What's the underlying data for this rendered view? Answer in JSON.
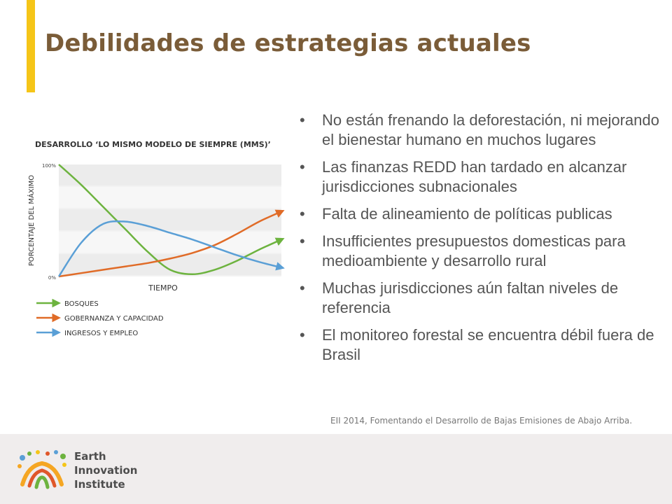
{
  "slide": {
    "title": "Debilidades de estrategias actuales",
    "accent_color": "#f5c518",
    "title_color": "#7a5c38"
  },
  "bullets": [
    "No están frenando la deforestación, ni mejorando el bienestar humano en muchos lugares",
    "Las finanzas REDD han tardado en alcanzar jurisdicciones subnacionales",
    "Falta de alineamiento de políticas publicas",
    "Insufficientes presupuestos domesticas para medioambiente y desarrollo rural",
    "Muchas jurisdicciones aún faltan niveles de referencia",
    "El monitoreo forestal se encuentra débil fuera de Brasil"
  ],
  "source": "EII 2014, Fomentando el Desarrollo de Bajas Emisiones de Abajo Arriba.",
  "footer": {
    "org_line1": "Earth",
    "org_line2": "Innovation",
    "org_line3": "Institute",
    "background": "#f0eded"
  },
  "chart_data": {
    "type": "line",
    "title": "DESARROLLO ‘LO MISMO MODELO DE SIEMPRE (MMS)’",
    "xlabel": "TIEMPO",
    "ylabel": "PORCENTAJE DEL MÁXIMO",
    "ytick_labels": [
      "100%",
      "0%"
    ],
    "ylim": [
      0,
      100
    ],
    "xlim": [
      0,
      100
    ],
    "grid": true,
    "legend_position": "bottom-left",
    "series": [
      {
        "name": "BOSQUES",
        "color": "#6db33f",
        "x": [
          0,
          10,
          20,
          30,
          40,
          50,
          60,
          70,
          80,
          90,
          100
        ],
        "y": [
          100,
          82,
          62,
          42,
          22,
          6,
          2,
          6,
          14,
          24,
          33
        ]
      },
      {
        "name": "GOBERNANZA Y CAPACIDAD",
        "color": "#e06b27",
        "x": [
          0,
          10,
          20,
          30,
          40,
          50,
          60,
          70,
          80,
          90,
          100
        ],
        "y": [
          0,
          3,
          6,
          9,
          12,
          16,
          21,
          28,
          38,
          49,
          58
        ]
      },
      {
        "name": "INGRESOS Y EMPLEO",
        "color": "#5a9fd6",
        "x": [
          0,
          10,
          20,
          30,
          40,
          50,
          60,
          70,
          80,
          90,
          100
        ],
        "y": [
          0,
          30,
          47,
          49,
          45,
          39,
          33,
          26,
          19,
          13,
          8
        ]
      }
    ]
  }
}
